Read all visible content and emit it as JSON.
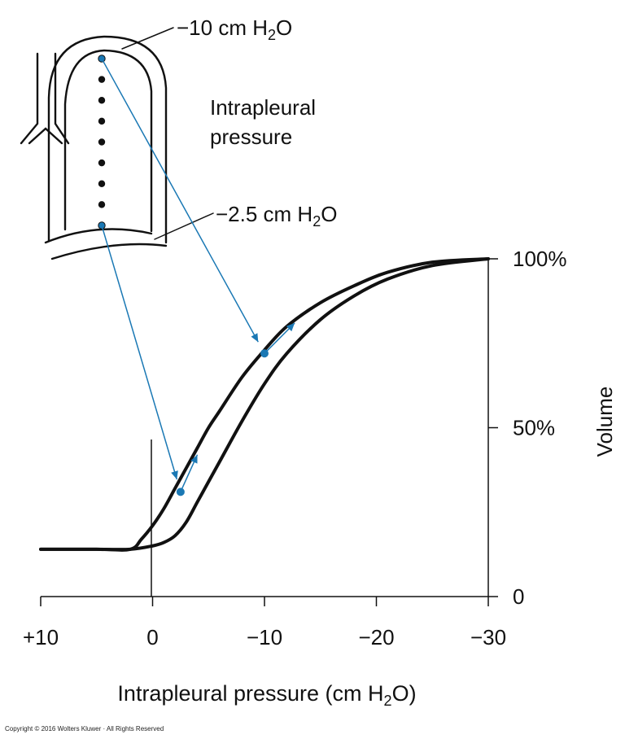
{
  "chart_data": {
    "type": "line",
    "xlabel": "Intrapleural pressure (cm H2O)",
    "ylabel": "Volume",
    "xlim": [
      10,
      -30
    ],
    "ylim": [
      0,
      100
    ],
    "x_ticks": [
      10,
      0,
      -10,
      -20,
      -30
    ],
    "x_tick_labels": [
      "+10",
      "0",
      "−10",
      "−20",
      "−30"
    ],
    "y_ticks": [
      0,
      50,
      100
    ],
    "y_tick_labels": [
      "0",
      "50%",
      "100%"
    ],
    "series": [
      {
        "points": [
          [
            10,
            14
          ],
          [
            5,
            14
          ],
          [
            2,
            14
          ],
          [
            1,
            17
          ],
          [
            0,
            21
          ],
          [
            -1,
            26
          ],
          [
            -2,
            32
          ],
          [
            -3,
            38
          ],
          [
            -4,
            44
          ],
          [
            -5,
            50
          ],
          [
            -6,
            55
          ],
          [
            -8,
            65
          ],
          [
            -10,
            73
          ],
          [
            -12,
            80
          ],
          [
            -15,
            87
          ],
          [
            -18,
            92
          ],
          [
            -21,
            96
          ],
          [
            -25,
            99
          ],
          [
            -30,
            100
          ]
        ]
      },
      {
        "points": [
          [
            10,
            14
          ],
          [
            5,
            14
          ],
          [
            2,
            14
          ],
          [
            0,
            15
          ],
          [
            -1,
            16
          ],
          [
            -2,
            18
          ],
          [
            -3,
            22
          ],
          [
            -4,
            28
          ],
          [
            -5,
            34
          ],
          [
            -6,
            40
          ],
          [
            -8,
            52
          ],
          [
            -10,
            63
          ],
          [
            -12,
            72
          ],
          [
            -15,
            82
          ],
          [
            -18,
            89
          ],
          [
            -21,
            94
          ],
          [
            -25,
            98
          ],
          [
            -30,
            100
          ]
        ]
      }
    ],
    "annotations": [
      {
        "label": "−10 cm H2O",
        "point": [
          -10,
          72
        ],
        "arrow_to": [
          -12.7,
          81
        ]
      },
      {
        "label": "−2.5 cm H2O",
        "point": [
          -2.5,
          31
        ],
        "arrow_to": [
          -4,
          42
        ]
      }
    ],
    "diagram_label": "Intrapleural pressure"
  },
  "colors": {
    "curve": "#111111",
    "annotation": "#1a78b4"
  },
  "copyright": "Copyright © 2016 Wolters Kluwer · All Rights Reserved"
}
